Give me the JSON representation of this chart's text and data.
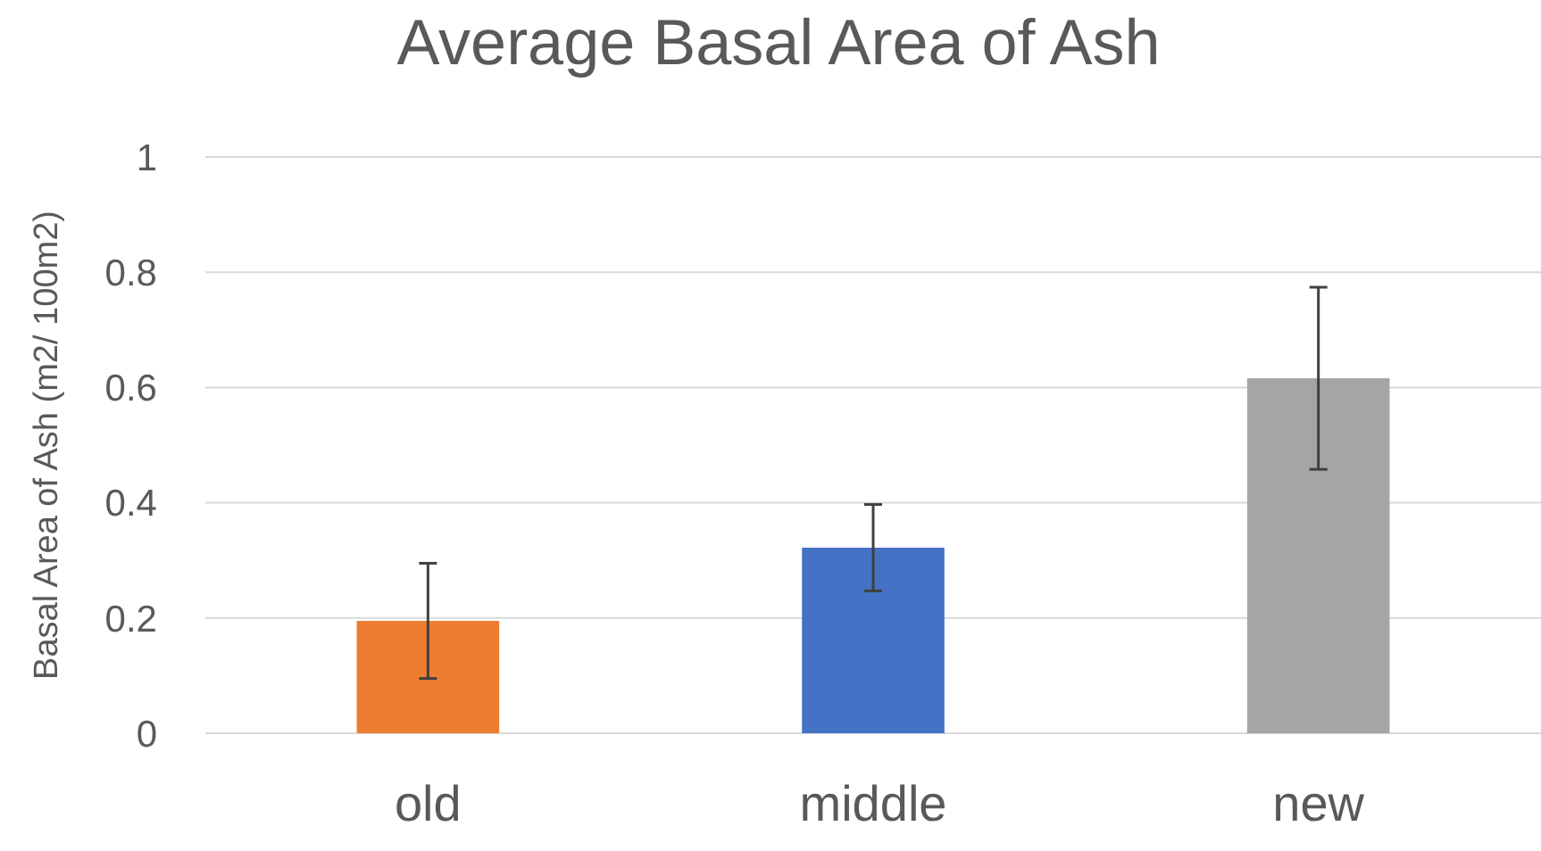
{
  "chart_data": {
    "type": "bar",
    "title": "Average Basal Area of Ash",
    "ylabel": "Basal Area of Ash (m2/ 100m2)",
    "categories": [
      "old",
      "middle",
      "new"
    ],
    "values": [
      0.195,
      0.322,
      0.616
    ],
    "colors": [
      "#ed7d31",
      "#4472c4",
      "#a5a5a5"
    ],
    "errors": [
      0.1,
      0.075,
      0.158
    ],
    "ylim": [
      0,
      1
    ],
    "yticks": [
      0,
      0.2,
      0.4,
      0.6,
      0.8,
      1
    ],
    "grid": "y"
  }
}
